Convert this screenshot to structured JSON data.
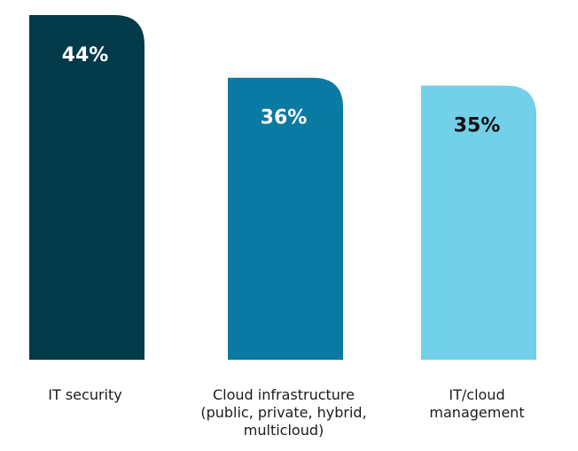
{
  "chart_data": {
    "type": "bar",
    "title": "",
    "xlabel": "",
    "ylabel": "",
    "categories": [
      "IT security",
      "Cloud infrastructure\n(public, private, hybrid,\nmulticloud)",
      "IT/cloud\nmanagement"
    ],
    "values": [
      44,
      36,
      35
    ],
    "value_labels": [
      "44%",
      "36%",
      "35%"
    ],
    "ylim": [
      0,
      44
    ],
    "grid": false,
    "legend": "none",
    "colors": [
      "#033a4a",
      "#0a7aa3",
      "#72d0e8"
    ],
    "label_colors": [
      "#ffffff",
      "#ffffff",
      "#111111"
    ]
  }
}
